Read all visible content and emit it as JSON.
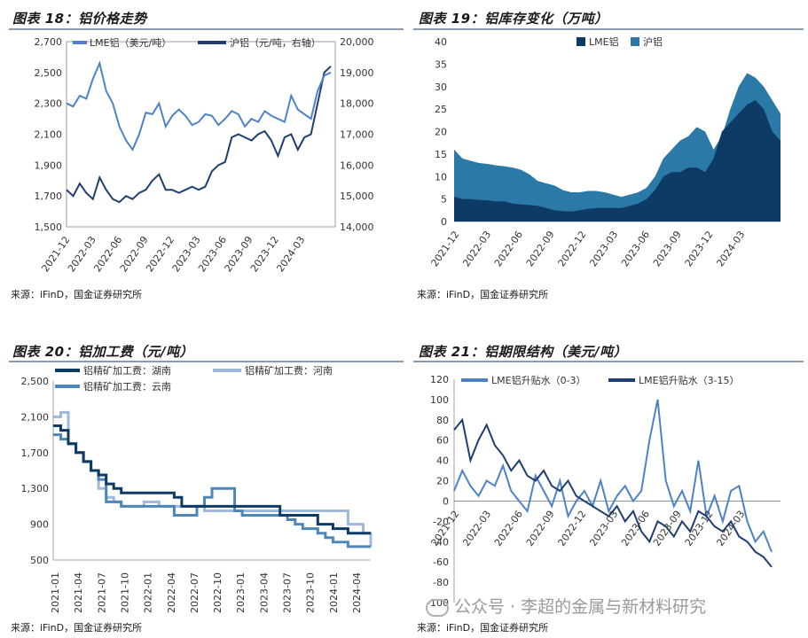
{
  "watermark": "公众号 · 李超的金属与新材料研究",
  "colors": {
    "dark": "#1f3f73",
    "mid": "#2f5fa8",
    "light": "#4d82c9",
    "pale": "#9fb8dc",
    "teal": "#2a79a6",
    "navy": "#0d3b66",
    "rule": "#8a9bb0"
  },
  "chart_data": [
    {
      "type": "line",
      "title": "图表 18：铝价格走势",
      "source": "来源：iFinD，国金证券研究所",
      "legend": [
        "LME铝（美元/吨）",
        "沪铝（元/吨，右轴）"
      ],
      "x_ticks": [
        "2021-12",
        "2022-03",
        "2022-06",
        "2022-09",
        "2022-12",
        "2023-03",
        "2023-06",
        "2023-09",
        "2023-12",
        "2024-03"
      ],
      "y_left": {
        "min": 1500,
        "max": 2700,
        "ticks": [
          "1,500",
          "1,700",
          "1,900",
          "2,100",
          "2,300",
          "2,500",
          "2,700"
        ]
      },
      "y_right": {
        "min": 14000,
        "max": 20000,
        "ticks": [
          "14,000",
          "15,000",
          "16,000",
          "17,000",
          "18,000",
          "19,000",
          "20,000"
        ]
      },
      "series": [
        {
          "name": "LME铝",
          "axis": "left",
          "values": [
            2300,
            2280,
            2350,
            2330,
            2460,
            2560,
            2380,
            2300,
            2150,
            2060,
            2000,
            2100,
            2240,
            2230,
            2300,
            2150,
            2220,
            2260,
            2220,
            2160,
            2180,
            2230,
            2220,
            2160,
            2200,
            2250,
            2230,
            2150,
            2200,
            2180,
            2250,
            2220,
            2200,
            2180,
            2350,
            2260,
            2230,
            2200,
            2380,
            2480,
            2500
          ]
        },
        {
          "name": "沪铝",
          "axis": "right",
          "values": [
            15200,
            15000,
            15400,
            15100,
            14900,
            15600,
            15200,
            14900,
            14800,
            15000,
            14900,
            15100,
            15200,
            15500,
            15700,
            15200,
            15200,
            15100,
            15200,
            15300,
            15200,
            15300,
            15800,
            16000,
            16100,
            16900,
            17000,
            16900,
            16800,
            17000,
            17100,
            16800,
            16300,
            16900,
            17000,
            16500,
            16900,
            17000,
            18000,
            19000,
            19200
          ]
        }
      ]
    },
    {
      "type": "area",
      "title": "图表 19：铝库存变化（万吨）",
      "source": "来源：iFinD，国金证券研究所",
      "legend": [
        "LME铝",
        "沪铝"
      ],
      "x_ticks": [
        "2021-12",
        "2022-03",
        "2022-06",
        "2022-09",
        "2022-12",
        "2023-03",
        "2023-06",
        "2023-09",
        "2023-12",
        "2024-03"
      ],
      "y": {
        "min": 0,
        "max": 40,
        "ticks": [
          "0",
          "5",
          "10",
          "15",
          "20",
          "25",
          "30",
          "35",
          "40"
        ]
      },
      "series": [
        {
          "name": "LME铝",
          "values": [
            5.5,
            5,
            5,
            4.8,
            4.7,
            4.5,
            4.5,
            4,
            3.8,
            3.7,
            3.5,
            3,
            2.5,
            2.3,
            2.2,
            2.5,
            2.8,
            3,
            3,
            3,
            3,
            3.5,
            4,
            5,
            7,
            10,
            11,
            11,
            12,
            12,
            11,
            14,
            20,
            22,
            24,
            26,
            27,
            25,
            20,
            18
          ]
        },
        {
          "name": "沪铝",
          "values": [
            16,
            14,
            13.5,
            13,
            12.8,
            12.5,
            12.3,
            12,
            11.5,
            10.5,
            9,
            8.5,
            8,
            7,
            6.5,
            6.5,
            6.8,
            6.8,
            6.5,
            6,
            5.5,
            6,
            6.5,
            7.5,
            10,
            14,
            16,
            18,
            19,
            21,
            20,
            16,
            19,
            25,
            30,
            33,
            32,
            30,
            27,
            24
          ]
        }
      ]
    },
    {
      "type": "line",
      "title": "图表 20：铝加工费（元/吨）",
      "source": "来源：iFinD，国金证券研究所",
      "legend": [
        "铝精矿加工费：湖南",
        "铝精矿加工费：河南",
        "铝精矿加工费：云南"
      ],
      "x_ticks": [
        "2021-01",
        "2021-04",
        "2021-07",
        "2021-10",
        "2022-01",
        "2022-04",
        "2022-07",
        "2022-10",
        "2023-01",
        "2023-04",
        "2023-07",
        "2023-10",
        "2024-01",
        "2024-04"
      ],
      "y": {
        "min": 500,
        "max": 2500,
        "ticks": [
          "500",
          "900",
          "1,300",
          "1,700",
          "2,100",
          "2,500"
        ]
      },
      "series": [
        {
          "name": "湖南",
          "x": [
            0,
            1,
            2,
            3,
            4,
            5,
            6,
            7,
            8,
            9,
            10,
            11,
            12,
            13,
            14,
            15,
            16,
            17,
            18,
            19,
            20,
            21,
            22,
            23,
            24,
            25,
            26,
            27,
            28,
            29,
            30,
            31,
            32,
            33,
            34,
            35,
            36,
            37,
            38,
            39,
            40,
            41,
            42
          ],
          "values": [
            2000,
            1950,
            1800,
            1700,
            1600,
            1500,
            1450,
            1350,
            1300,
            1250,
            1250,
            1250,
            1250,
            1250,
            1250,
            1250,
            1200,
            1100,
            1100,
            1100,
            1100,
            1100,
            1100,
            1100,
            1100,
            1100,
            1100,
            1100,
            1100,
            1100,
            1000,
            1000,
            1000,
            1000,
            1000,
            900,
            900,
            850,
            850,
            800,
            800,
            800,
            800
          ]
        },
        {
          "name": "河南",
          "x": [
            0,
            1,
            2,
            3,
            4,
            5,
            6,
            7,
            8,
            9,
            10,
            11,
            12,
            13,
            14,
            15,
            16,
            17,
            18,
            19,
            20,
            21,
            22,
            23,
            24,
            25,
            26,
            27,
            28,
            29,
            30,
            31,
            32,
            33,
            34,
            35,
            36,
            37,
            38,
            39,
            40,
            41,
            42
          ],
          "values": [
            2100,
            2150,
            1800,
            1700,
            1600,
            1500,
            1300,
            1200,
            1150,
            1100,
            1100,
            1100,
            1150,
            1150,
            1100,
            1100,
            1100,
            1100,
            1100,
            1100,
            1050,
            1050,
            1050,
            1050,
            1050,
            1050,
            1050,
            1050,
            1050,
            1050,
            1050,
            1050,
            1050,
            1050,
            1050,
            1050,
            1050,
            1050,
            1050,
            900,
            900,
            800,
            650
          ]
        },
        {
          "name": "云南",
          "x": [
            0,
            1,
            2,
            3,
            4,
            5,
            6,
            7,
            8,
            9,
            10,
            11,
            12,
            13,
            14,
            15,
            16,
            17,
            18,
            19,
            20,
            21,
            22,
            23,
            24,
            25,
            26,
            27,
            28,
            29,
            30,
            31,
            32,
            33,
            34,
            35,
            36,
            37,
            38,
            39,
            40,
            41,
            42
          ],
          "values": [
            1900,
            1850,
            1800,
            1700,
            1600,
            1500,
            1400,
            1150,
            1150,
            1100,
            1100,
            1100,
            1100,
            1100,
            1100,
            1100,
            1000,
            1000,
            1000,
            1100,
            1200,
            1300,
            1300,
            1300,
            1050,
            1000,
            1000,
            1000,
            1000,
            1000,
            1000,
            950,
            900,
            850,
            850,
            800,
            750,
            700,
            700,
            650,
            650,
            650,
            650
          ]
        }
      ]
    },
    {
      "type": "line",
      "title": "图表 21：铝期限结构（美元/吨）",
      "source": "来源：iFinD，国金证券研究所",
      "legend": [
        "LME铝升贴水（0-3）",
        "LME铝升贴水（3-15）"
      ],
      "x_ticks": [
        "2021-12",
        "2022-03",
        "2022-06",
        "2022-09",
        "2022-12",
        "2023-03",
        "2023-06",
        "2023-09",
        "2023-12",
        "2024-03"
      ],
      "y": {
        "min": -100,
        "max": 120,
        "ticks": [
          "-100",
          "-80",
          "-60",
          "-40",
          "-20",
          "0",
          "20",
          "40",
          "60",
          "80",
          "100",
          "120"
        ]
      },
      "series": [
        {
          "name": "0-3",
          "values": [
            10,
            30,
            15,
            5,
            20,
            15,
            35,
            10,
            0,
            -10,
            25,
            10,
            -5,
            20,
            -15,
            0,
            10,
            -5,
            20,
            -10,
            5,
            15,
            0,
            10,
            60,
            100,
            20,
            -5,
            10,
            -10,
            40,
            -15,
            5,
            -20,
            10,
            15,
            -20,
            -40,
            -30,
            -50
          ]
        },
        {
          "name": "3-15",
          "values": [
            70,
            80,
            40,
            60,
            75,
            55,
            45,
            30,
            40,
            25,
            20,
            30,
            15,
            10,
            20,
            5,
            0,
            -5,
            -10,
            -15,
            -5,
            -20,
            -10,
            -30,
            -40,
            -20,
            -25,
            -35,
            -20,
            -30,
            -10,
            -15,
            -25,
            -30,
            -20,
            -35,
            -40,
            -50,
            -55,
            -65
          ]
        }
      ]
    }
  ]
}
